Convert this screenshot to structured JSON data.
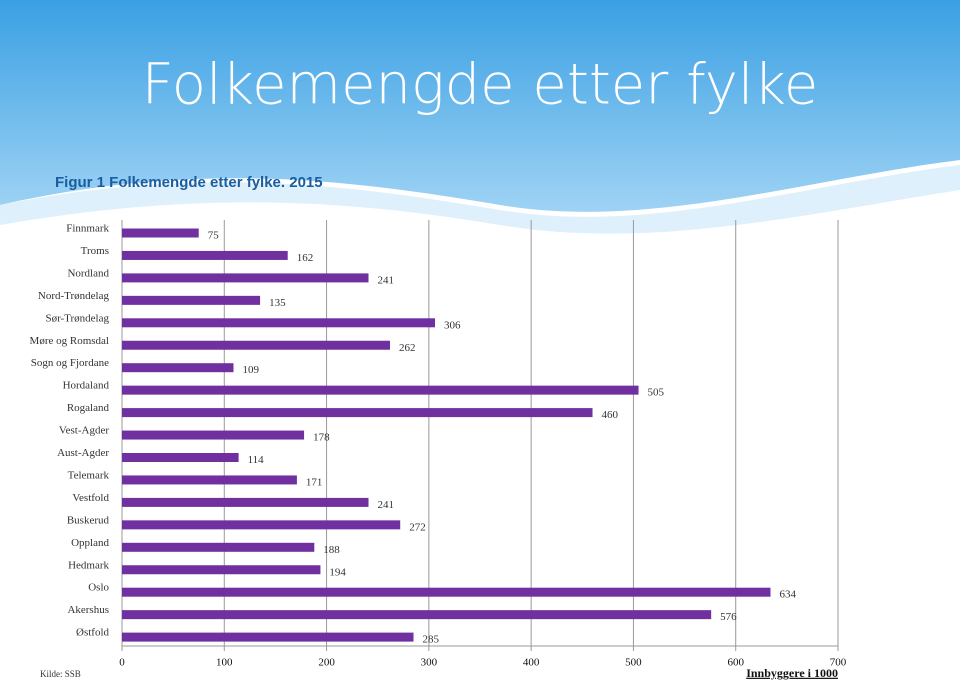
{
  "chart_data": {
    "type": "bar",
    "orientation": "horizontal",
    "title": "Folkemengde etter fylke",
    "subtitle": "Figur 1 Folkemengde etter fylke. 2015",
    "xlabel": "Innbyggere i 1000",
    "source": "Kilde: SSB",
    "categories": [
      "Finnmark",
      "Troms",
      "Nordland",
      "Nord-Trøndelag",
      "Sør-Trøndelag",
      "Møre og Romsdal",
      "Sogn og Fjordane",
      "Hordaland",
      "Rogaland",
      "Vest-Agder",
      "Aust-Agder",
      "Telemark",
      "Vestfold",
      "Buskerud",
      "Oppland",
      "Hedmark",
      "Oslo",
      "Akershus",
      "Østfold"
    ],
    "values": [
      75,
      162,
      241,
      135,
      306,
      262,
      109,
      505,
      460,
      178,
      114,
      171,
      241,
      272,
      188,
      194,
      634,
      576,
      285
    ],
    "color": "#7030a0",
    "xlim": [
      0,
      700
    ],
    "xticks": [
      0,
      100,
      200,
      300,
      400,
      500,
      600,
      700
    ],
    "grid": true
  }
}
